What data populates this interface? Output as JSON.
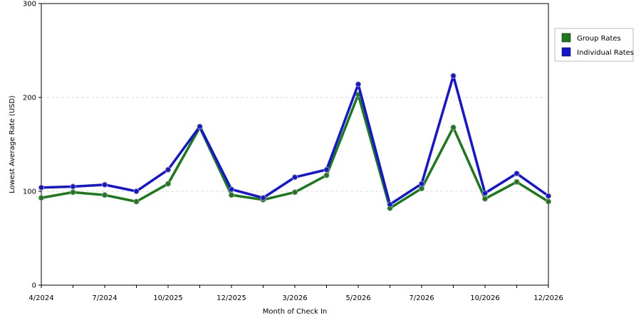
{
  "chart_data": {
    "type": "line",
    "title": "",
    "xlabel": "Month of Check In",
    "ylabel": "Lowest Average Rate (USD)",
    "ylim": [
      0,
      300
    ],
    "yticks": [
      0,
      100,
      200,
      300
    ],
    "ytick_labels": [
      "0",
      "100",
      "200",
      "300"
    ],
    "grid": true,
    "legend_position": "right",
    "x_tick_labels": [
      "4/2024",
      "7/2024",
      "10/2025",
      "12/2025",
      "3/2026",
      "5/2026",
      "7/2026",
      "10/2026",
      "12/2026"
    ],
    "x_tick_label_at_point": [
      0,
      2,
      4,
      6,
      8,
      10,
      12,
      14,
      16
    ],
    "point_count": 17,
    "series": [
      {
        "name": "Group Rates",
        "color": "#1a7a1a",
        "values": [
          93,
          99,
          96,
          89,
          108,
          168,
          96,
          91,
          99,
          117,
          203,
          82,
          103,
          168,
          92,
          110,
          89
        ]
      },
      {
        "name": "Individual Rates",
        "color": "#1414d4",
        "values": [
          104,
          105,
          107,
          100,
          123,
          169,
          102,
          93,
          115,
          123,
          214,
          86,
          108,
          223,
          98,
          119,
          95
        ]
      }
    ]
  }
}
